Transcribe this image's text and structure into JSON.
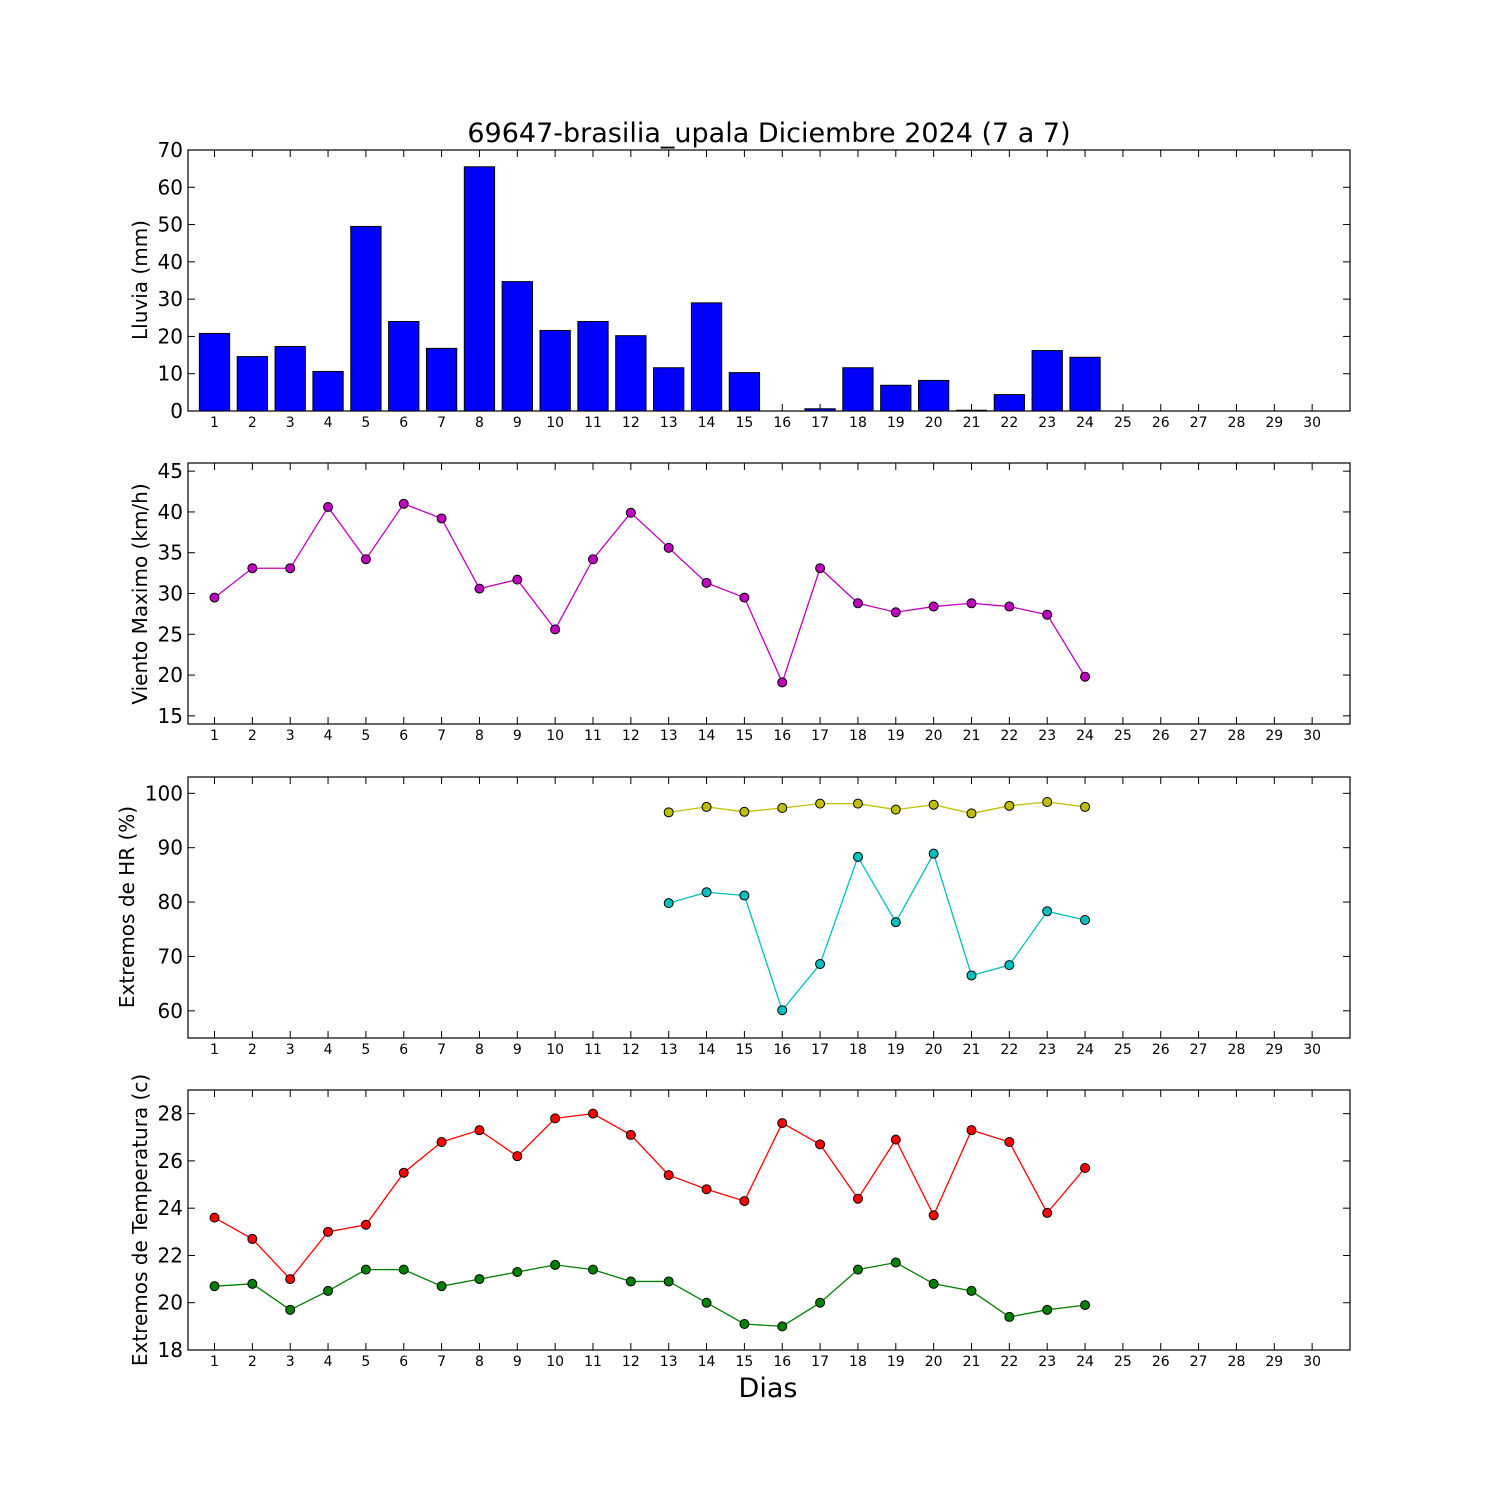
{
  "title": "69647-brasilia_upala Diciembre 2024  (7 a 7)",
  "xlabel": "Dias",
  "colors": {
    "rain": "#0000ff",
    "wind": "#bf00bf",
    "hr_max": "#bfbf00",
    "hr_min": "#00bfbf",
    "temp_max": "#ff0000",
    "temp_min": "#008000"
  },
  "chart_data": [
    {
      "type": "bar",
      "title": "69647-brasilia_upala Diciembre 2024  (7 a 7)",
      "ylabel": "Lluvia (mm)",
      "categories": [
        1,
        2,
        3,
        4,
        5,
        6,
        7,
        8,
        9,
        10,
        11,
        12,
        13,
        14,
        15,
        16,
        17,
        18,
        19,
        20,
        21,
        22,
        23,
        24,
        25,
        26,
        27,
        28,
        29,
        30
      ],
      "values": [
        20.8,
        14.6,
        17.3,
        10.6,
        49.5,
        24.0,
        16.8,
        65.5,
        34.7,
        21.6,
        24.0,
        20.2,
        11.6,
        29.0,
        10.3,
        0,
        0.6,
        11.6,
        6.9,
        8.2,
        0.2,
        4.4,
        16.2,
        14.4,
        0,
        0,
        0,
        0,
        0,
        0
      ],
      "ylim": [
        0,
        70
      ],
      "yticks": [
        0,
        10,
        20,
        30,
        40,
        50,
        60,
        70
      ],
      "grid": false
    },
    {
      "type": "line",
      "ylabel": "Viento Maximo (km/h)",
      "x": [
        1,
        2,
        3,
        4,
        5,
        6,
        7,
        8,
        9,
        10,
        11,
        12,
        13,
        14,
        15,
        16,
        17,
        18,
        19,
        20,
        21,
        22,
        23,
        24
      ],
      "series": [
        {
          "values": [
            29.5,
            33.1,
            33.1,
            40.6,
            34.2,
            41.0,
            39.2,
            30.6,
            31.7,
            25.6,
            34.2,
            39.9,
            35.6,
            31.3,
            29.5,
            19.1,
            33.1,
            28.8,
            27.7,
            28.4,
            28.8,
            28.4,
            27.4,
            19.8
          ]
        }
      ],
      "ylim": [
        14,
        46
      ],
      "yticks": [
        15,
        20,
        25,
        30,
        35,
        40,
        45
      ],
      "grid": false
    },
    {
      "type": "line",
      "ylabel": "Extremos de HR (%)",
      "x": [
        13,
        14,
        15,
        16,
        17,
        18,
        19,
        20,
        21,
        22,
        23,
        24
      ],
      "series": [
        {
          "values": [
            96.5,
            97.5,
            96.6,
            97.3,
            98.1,
            98.1,
            97.0,
            97.9,
            96.3,
            97.7,
            98.4,
            97.5
          ]
        },
        {
          "values": [
            79.8,
            81.8,
            81.2,
            60.1,
            68.6,
            88.3,
            76.3,
            88.9,
            66.5,
            68.4,
            78.3,
            76.7
          ]
        }
      ],
      "ylim": [
        55,
        103
      ],
      "yticks": [
        60,
        70,
        80,
        90,
        100
      ],
      "grid": false
    },
    {
      "type": "line",
      "ylabel": "Extremos de Temperatura (c)",
      "x": [
        1,
        2,
        3,
        4,
        5,
        6,
        7,
        8,
        9,
        10,
        11,
        12,
        13,
        14,
        15,
        16,
        17,
        18,
        19,
        20,
        21,
        22,
        23,
        24
      ],
      "series": [
        {
          "values": [
            23.6,
            22.7,
            21.0,
            23.0,
            23.3,
            25.5,
            26.8,
            27.3,
            26.2,
            27.8,
            28.0,
            27.1,
            25.4,
            24.8,
            24.3,
            27.6,
            26.7,
            24.4,
            26.9,
            23.7,
            27.3,
            26.8,
            23.8,
            25.7
          ]
        },
        {
          "values": [
            20.7,
            20.8,
            19.7,
            20.5,
            21.4,
            21.4,
            20.7,
            21.0,
            21.3,
            21.6,
            21.4,
            20.9,
            20.9,
            20.0,
            19.1,
            19.0,
            20.0,
            21.4,
            21.7,
            20.8,
            20.5,
            19.4,
            19.7,
            19.9
          ]
        }
      ],
      "ylim": [
        18,
        29
      ],
      "yticks": [
        18,
        20,
        22,
        24,
        26,
        28
      ],
      "xlabel": "Dias",
      "grid": false
    }
  ]
}
